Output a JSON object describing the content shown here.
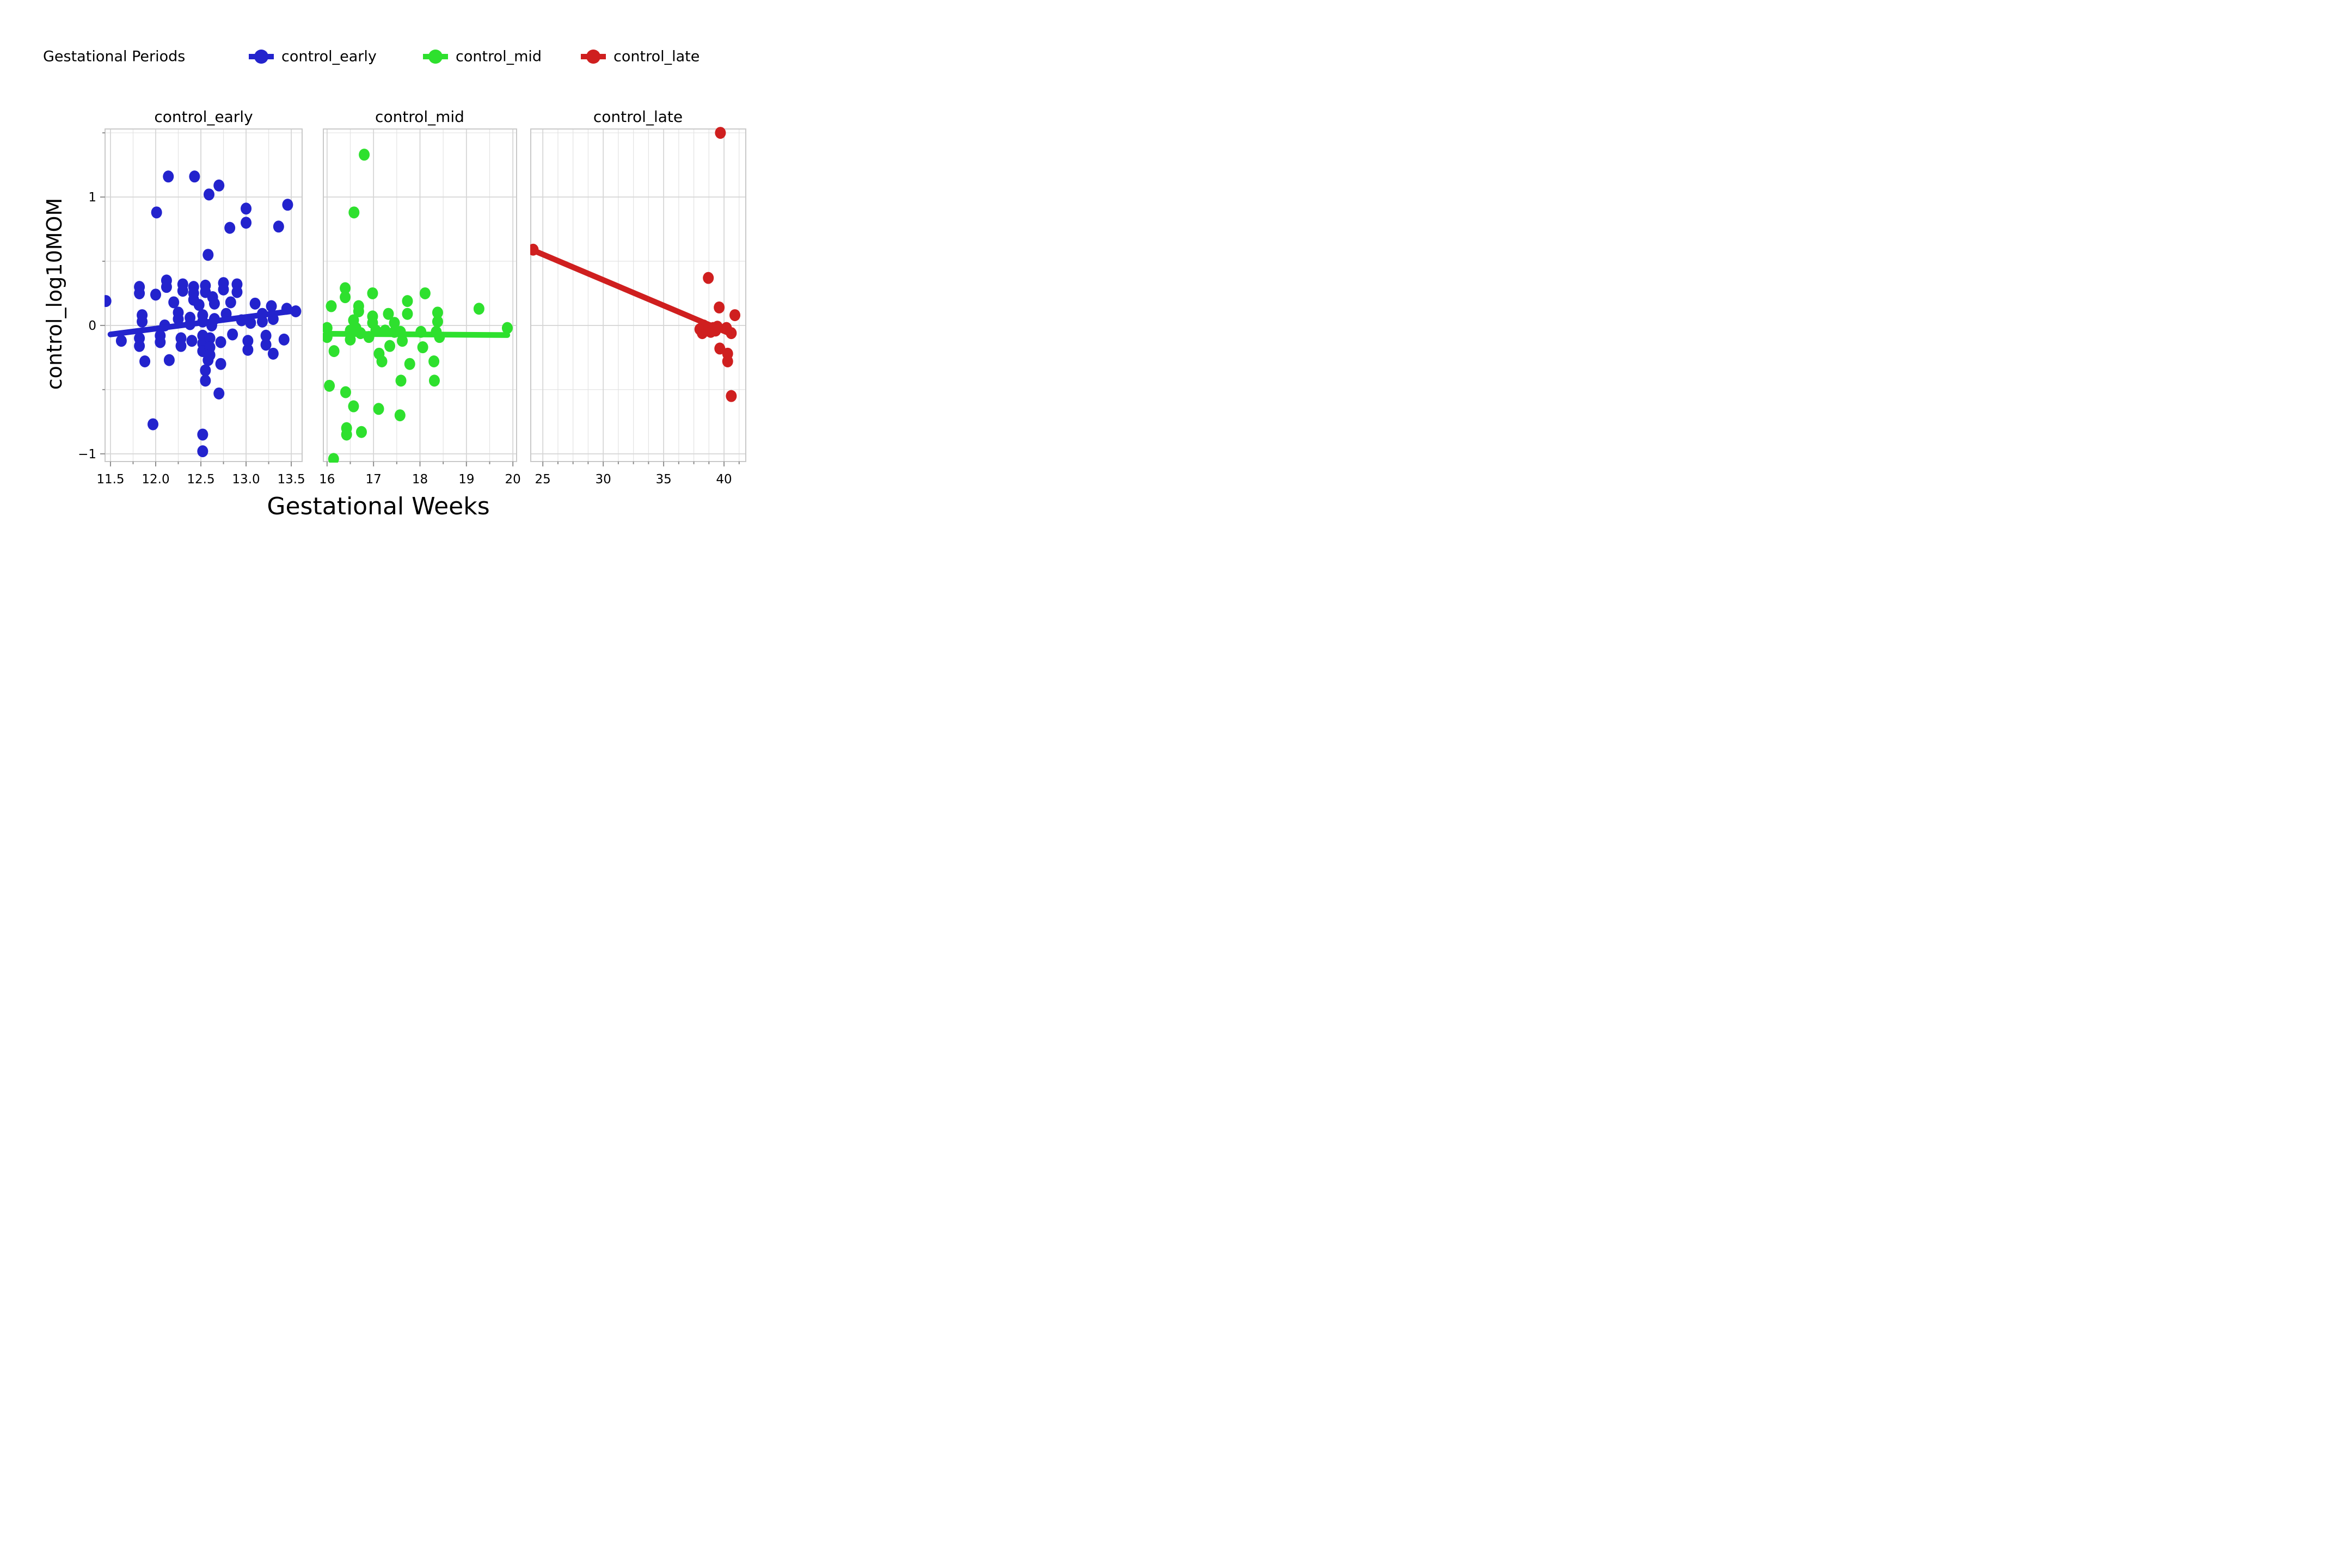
{
  "figure": {
    "background": "#ffffff"
  },
  "legend": {
    "title": "Gestational Periods",
    "items": [
      {
        "label": "control_early",
        "color": "#2323cd"
      },
      {
        "label": "control_mid",
        "color": "#2ee02e"
      },
      {
        "label": "control_late",
        "color": "#cf1f1f"
      }
    ]
  },
  "axes": {
    "x_label": "Gestational Weeks",
    "y_label": "control_log10MOM",
    "ylim": [
      -1.06,
      1.53
    ],
    "y_ticks": [
      1,
      0,
      -1
    ],
    "y_tick_labels": [
      "1",
      "0",
      "−1"
    ],
    "y_minor_step": 0.5,
    "grid_major_color": "#d6d6d6",
    "grid_minor_color": "#e3e3e3",
    "spine_color": "#c9c9c9",
    "tick_color": "#8f8f8f",
    "text_color": "#000000"
  },
  "chart_data": [
    {
      "type": "scatter",
      "title": "control_early",
      "series": "control_early",
      "color": "#2323cd",
      "xlim": [
        11.44,
        13.62
      ],
      "x_ticks": [
        11.5,
        12.0,
        12.5,
        13.0,
        13.5
      ],
      "x_tick_labels": [
        "11.5",
        "12.0",
        "12.5",
        "13.0",
        "13.5"
      ],
      "x_minor_step": 0.25,
      "points": [
        [
          12.14,
          1.16
        ],
        [
          12.43,
          1.16
        ],
        [
          12.7,
          1.09
        ],
        [
          12.59,
          1.02
        ],
        [
          12.01,
          0.88
        ],
        [
          13.0,
          0.91
        ],
        [
          13.46,
          0.94
        ],
        [
          13.0,
          0.8
        ],
        [
          12.82,
          0.76
        ],
        [
          13.36,
          0.77
        ],
        [
          12.58,
          0.55
        ],
        [
          11.82,
          0.3
        ],
        [
          11.82,
          0.25
        ],
        [
          12.12,
          0.35
        ],
        [
          12.12,
          0.3
        ],
        [
          12.3,
          0.32
        ],
        [
          12.3,
          0.27
        ],
        [
          12.42,
          0.3
        ],
        [
          12.42,
          0.25
        ],
        [
          12.42,
          0.2
        ],
        [
          12.55,
          0.31
        ],
        [
          12.55,
          0.26
        ],
        [
          12.63,
          0.22
        ],
        [
          12.75,
          0.33
        ],
        [
          12.75,
          0.28
        ],
        [
          12.9,
          0.32
        ],
        [
          12.9,
          0.26
        ],
        [
          11.45,
          0.19
        ],
        [
          12.0,
          0.24
        ],
        [
          12.2,
          0.18
        ],
        [
          12.48,
          0.16
        ],
        [
          12.65,
          0.17
        ],
        [
          12.83,
          0.18
        ],
        [
          13.1,
          0.17
        ],
        [
          13.28,
          0.15
        ],
        [
          13.45,
          0.13
        ],
        [
          13.55,
          0.11
        ],
        [
          11.85,
          0.08
        ],
        [
          11.85,
          0.03
        ],
        [
          12.25,
          0.1
        ],
        [
          12.25,
          0.05
        ],
        [
          12.38,
          0.06
        ],
        [
          12.38,
          0.01
        ],
        [
          12.52,
          0.08
        ],
        [
          12.52,
          0.03
        ],
        [
          12.65,
          0.05
        ],
        [
          12.78,
          0.09
        ],
        [
          12.95,
          0.04
        ],
        [
          13.05,
          0.02
        ],
        [
          13.18,
          0.09
        ],
        [
          13.18,
          0.03
        ],
        [
          13.3,
          0.05
        ],
        [
          12.1,
          0.0
        ],
        [
          12.62,
          0.0
        ],
        [
          11.62,
          -0.12
        ],
        [
          11.82,
          -0.1
        ],
        [
          11.82,
          -0.16
        ],
        [
          12.05,
          -0.08
        ],
        [
          12.05,
          -0.13
        ],
        [
          12.28,
          -0.1
        ],
        [
          12.28,
          -0.16
        ],
        [
          12.4,
          -0.12
        ],
        [
          12.52,
          -0.08
        ],
        [
          12.52,
          -0.14
        ],
        [
          12.52,
          -0.2
        ],
        [
          12.6,
          -0.1
        ],
        [
          12.6,
          -0.17
        ],
        [
          12.6,
          -0.23
        ],
        [
          12.72,
          -0.13
        ],
        [
          12.85,
          -0.07
        ],
        [
          13.02,
          -0.12
        ],
        [
          13.02,
          -0.19
        ],
        [
          13.22,
          -0.08
        ],
        [
          13.22,
          -0.15
        ],
        [
          13.3,
          -0.22
        ],
        [
          13.42,
          -0.11
        ],
        [
          11.88,
          -0.28
        ],
        [
          12.15,
          -0.27
        ],
        [
          12.58,
          -0.27
        ],
        [
          12.72,
          -0.3
        ],
        [
          12.55,
          -0.35
        ],
        [
          12.55,
          -0.43
        ],
        [
          12.7,
          -0.53
        ],
        [
          11.97,
          -0.77
        ],
        [
          12.52,
          -0.85
        ],
        [
          12.52,
          -0.98
        ]
      ],
      "trend": [
        [
          11.5,
          -0.07
        ],
        [
          13.55,
          0.115
        ]
      ]
    },
    {
      "type": "scatter",
      "title": "control_mid",
      "series": "control_mid",
      "color": "#2ee02e",
      "xlim": [
        15.92,
        20.08
      ],
      "x_ticks": [
        16,
        17,
        18,
        19,
        20
      ],
      "x_tick_labels": [
        "16",
        "17",
        "18",
        "19",
        "20"
      ],
      "x_minor_step": 0.5,
      "points": [
        [
          16.8,
          1.33
        ],
        [
          16.58,
          0.88
        ],
        [
          16.09,
          0.15
        ],
        [
          16.39,
          0.29
        ],
        [
          16.39,
          0.22
        ],
        [
          16.68,
          0.15
        ],
        [
          16.68,
          0.11
        ],
        [
          16.57,
          0.04
        ],
        [
          16.98,
          0.25
        ],
        [
          16.98,
          0.07
        ],
        [
          16.98,
          0.02
        ],
        [
          17.32,
          0.09
        ],
        [
          17.45,
          0.02
        ],
        [
          17.73,
          0.19
        ],
        [
          17.73,
          0.09
        ],
        [
          18.11,
          0.25
        ],
        [
          18.38,
          0.1
        ],
        [
          18.38,
          0.03
        ],
        [
          19.27,
          0.13
        ],
        [
          19.88,
          -0.02
        ],
        [
          16.0,
          -0.02
        ],
        [
          16.0,
          -0.09
        ],
        [
          16.15,
          -0.2
        ],
        [
          16.5,
          -0.04
        ],
        [
          16.5,
          -0.11
        ],
        [
          16.62,
          -0.02
        ],
        [
          16.72,
          -0.06
        ],
        [
          16.9,
          -0.09
        ],
        [
          17.05,
          -0.04
        ],
        [
          17.12,
          -0.22
        ],
        [
          17.18,
          -0.28
        ],
        [
          17.25,
          -0.04
        ],
        [
          17.35,
          -0.16
        ],
        [
          17.45,
          -0.05
        ],
        [
          17.58,
          -0.05
        ],
        [
          17.62,
          -0.12
        ],
        [
          17.78,
          -0.3
        ],
        [
          18.02,
          -0.05
        ],
        [
          18.06,
          -0.17
        ],
        [
          18.3,
          -0.28
        ],
        [
          18.35,
          -0.05
        ],
        [
          18.42,
          -0.09
        ],
        [
          16.05,
          -0.47
        ],
        [
          16.4,
          -0.52
        ],
        [
          16.57,
          -0.63
        ],
        [
          17.11,
          -0.65
        ],
        [
          17.57,
          -0.7
        ],
        [
          17.59,
          -0.43
        ],
        [
          18.31,
          -0.43
        ],
        [
          16.42,
          -0.8
        ],
        [
          16.42,
          -0.85
        ],
        [
          16.74,
          -0.83
        ],
        [
          16.14,
          -1.04
        ]
      ],
      "trend": [
        [
          16.0,
          -0.065
        ],
        [
          19.88,
          -0.075
        ]
      ]
    },
    {
      "type": "scatter",
      "title": "control_late",
      "series": "control_late",
      "color": "#cf1f1f",
      "xlim": [
        24.0,
        41.8
      ],
      "x_ticks": [
        25,
        30,
        35,
        40
      ],
      "x_tick_labels": [
        "25",
        "30",
        "35",
        "40"
      ],
      "x_minor_step": 1.25,
      "points": [
        [
          24.2,
          0.59
        ],
        [
          39.7,
          1.5
        ],
        [
          38.7,
          0.37
        ],
        [
          39.6,
          0.14
        ],
        [
          40.9,
          0.08
        ],
        [
          38.0,
          -0.03
        ],
        [
          38.2,
          -0.06
        ],
        [
          38.3,
          0.0
        ],
        [
          38.55,
          -0.04
        ],
        [
          38.75,
          -0.02
        ],
        [
          38.9,
          -0.05
        ],
        [
          39.1,
          -0.02
        ],
        [
          39.3,
          -0.04
        ],
        [
          39.45,
          -0.01
        ],
        [
          40.2,
          -0.02
        ],
        [
          40.6,
          -0.06
        ],
        [
          39.65,
          -0.18
        ],
        [
          40.3,
          -0.22
        ],
        [
          40.3,
          -0.28
        ],
        [
          40.6,
          -0.55
        ]
      ],
      "trend": [
        [
          24.2,
          0.585
        ],
        [
          40.4,
          -0.06
        ]
      ]
    }
  ]
}
